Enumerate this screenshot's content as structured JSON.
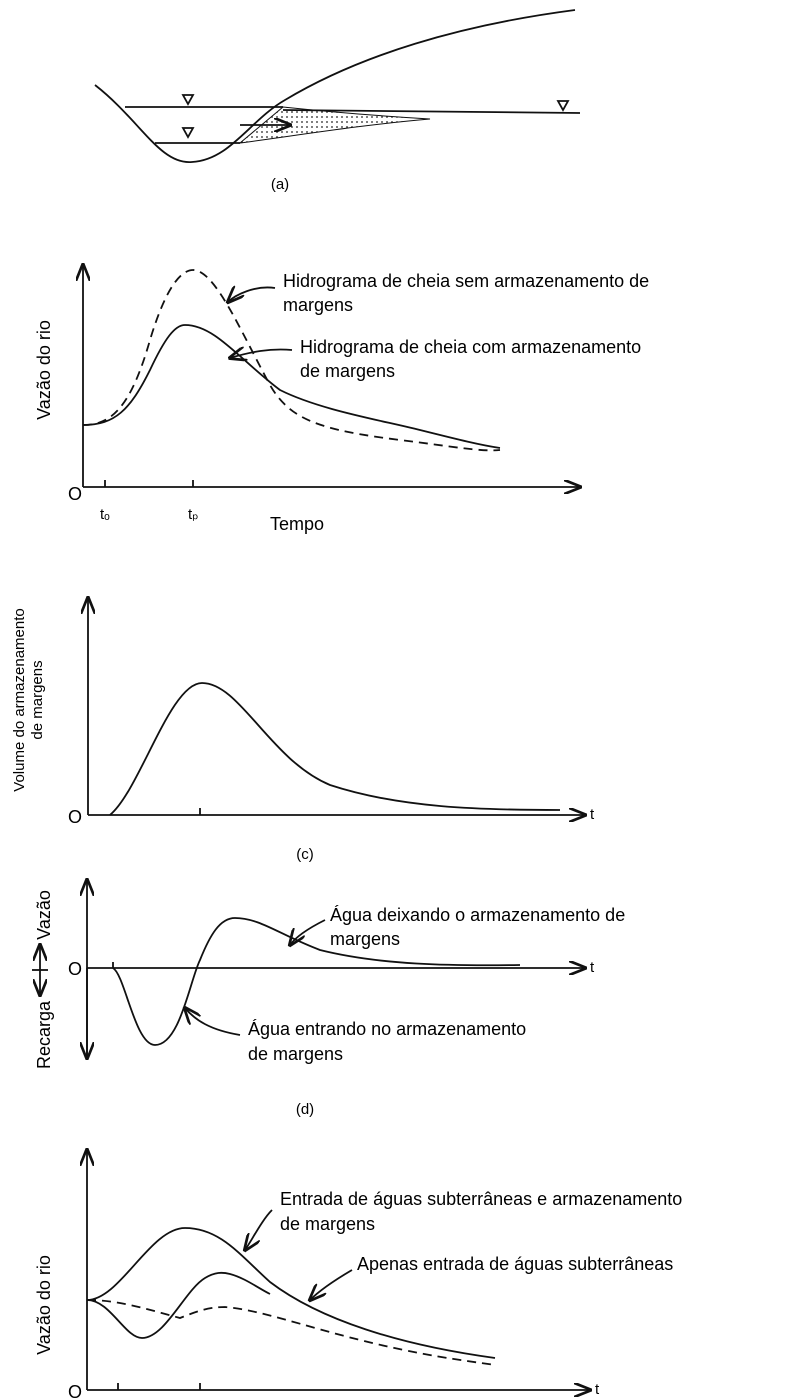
{
  "panel_a": {
    "caption": "(a)"
  },
  "panel_b": {
    "y_label": "Vazão do rio",
    "origin": "O",
    "t0": "tₒ",
    "tp": "tₚ",
    "x_label": "Tempo",
    "annotations": [
      [
        "Hidrograma de cheia sem armazenamento de",
        "margens"
      ],
      [
        "Hidrograma de cheia com armazenamento",
        "de margens"
      ]
    ]
  },
  "panel_c": {
    "y_label": [
      "Volume do armazenamento",
      "de margens"
    ],
    "origin": "O",
    "x_label": "t",
    "caption": "(c)"
  },
  "panel_d": {
    "y_label_top": "Vazão",
    "y_label_bottom": "Recarga",
    "origin": "O",
    "x_label": "t",
    "annotations": [
      [
        "Água deixando o armazenamento de",
        "margens"
      ],
      [
        "Água entrando no armazenamento",
        "de margens"
      ]
    ],
    "caption": "(d)"
  },
  "panel_e": {
    "y_label": "Vazão do rio",
    "origin": "O",
    "x_label": "t",
    "annotations": [
      [
        "Entrada de águas subterrâneas e armazenamento",
        "de margens"
      ],
      [
        "Apenas entrada de águas subterrâneas"
      ]
    ]
  }
}
